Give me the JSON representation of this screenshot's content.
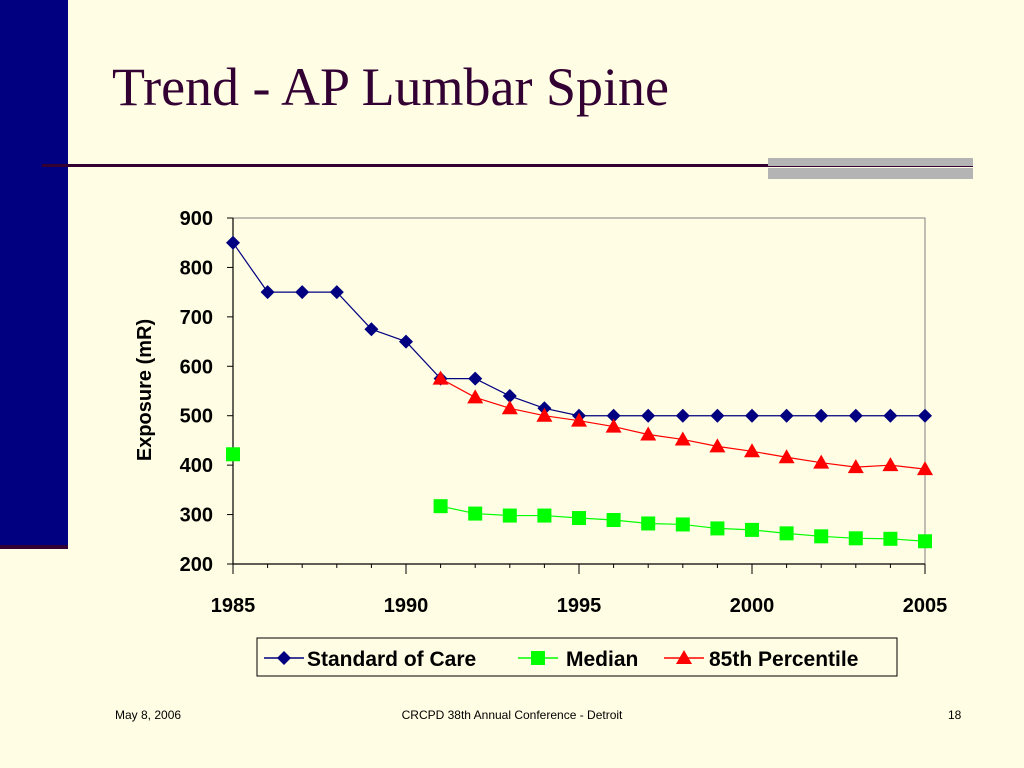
{
  "slide": {
    "title": "Trend - AP Lumbar Spine",
    "footer_date": "May 8, 2006",
    "footer_center": "CRCPD 38th Annual Conference - Detroit",
    "footer_page": "18"
  },
  "colors": {
    "background": "#FFFDE3",
    "left_bar": "#000080",
    "title_text": "#330033",
    "gray_accent": "#B4B4B4"
  },
  "chart_data": {
    "type": "line",
    "title": "",
    "xlabel": "",
    "ylabel": "Exposure (mR)",
    "xlim": [
      1985,
      2005
    ],
    "ylim": [
      200,
      900
    ],
    "xticks": [
      "1985",
      "1990",
      "1995",
      "2000",
      "2005"
    ],
    "yticks": [
      "200",
      "300",
      "400",
      "500",
      "600",
      "700",
      "800",
      "900"
    ],
    "grid": false,
    "legend_position": "bottom",
    "series": [
      {
        "name": "Standard of Care",
        "color": "#000080",
        "marker": "diamond",
        "x": [
          1985,
          1986,
          1987,
          1988,
          1989,
          1990,
          1991,
          1992,
          1993,
          1994,
          1995,
          1996,
          1997,
          1998,
          1999,
          2000,
          2001,
          2002,
          2003,
          2004,
          2005
        ],
        "values": [
          850,
          750,
          750,
          750,
          675,
          650,
          575,
          575,
          540,
          515,
          500,
          500,
          500,
          500,
          500,
          500,
          500,
          500,
          500,
          500,
          500
        ]
      },
      {
        "name": "Median",
        "color": "#00FF00",
        "marker": "square",
        "x": [
          1985,
          1991,
          1992,
          1993,
          1994,
          1995,
          1996,
          1997,
          1998,
          1999,
          2000,
          2001,
          2002,
          2003,
          2004,
          2005
        ],
        "values": [
          422,
          317,
          302,
          298,
          298,
          293,
          289,
          282,
          280,
          272,
          269,
          262,
          256,
          252,
          251,
          246
        ]
      },
      {
        "name": "85th Percentile",
        "color": "#FF0000",
        "marker": "triangle",
        "x": [
          1991,
          1992,
          1993,
          1994,
          1995,
          1996,
          1997,
          1998,
          1999,
          2000,
          2001,
          2002,
          2003,
          2004,
          2005
        ],
        "values": [
          575,
          537,
          515,
          500,
          490,
          478,
          462,
          452,
          438,
          428,
          416,
          405,
          396,
          400,
          392
        ]
      }
    ]
  }
}
